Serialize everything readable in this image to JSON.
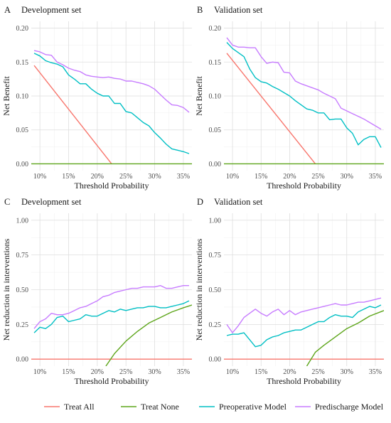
{
  "colors": {
    "treat_all": "#F8766D",
    "treat_none": "#5DA51A",
    "preoperative": "#00BFC4",
    "predischarge": "#C77CFF"
  },
  "legend": {
    "items": [
      {
        "key": "treat_all",
        "label": "Treat All"
      },
      {
        "key": "treat_none",
        "label": "Treat None"
      },
      {
        "key": "preoperative",
        "label": "Preoperative Model"
      },
      {
        "key": "predischarge",
        "label": "Predischarge Model"
      }
    ]
  },
  "chart_data": [
    {
      "letter": "A",
      "type": "line",
      "title": "Development set",
      "xlabel": "Threshold Probability",
      "ylabel": "Net Benefit",
      "xlim": [
        0.085,
        0.365
      ],
      "ylim": [
        -0.01,
        0.21
      ],
      "xticks": [
        0.1,
        0.15,
        0.2,
        0.25,
        0.3,
        0.35
      ],
      "xtick_labels": [
        "10%",
        "15%",
        "20%",
        "25%",
        "30%",
        "35%"
      ],
      "yticks": [
        0.0,
        0.05,
        0.1,
        0.15,
        0.2
      ],
      "ytick_labels": [
        "0.00",
        "0.05",
        "0.10",
        "0.15",
        "0.20"
      ],
      "x": [
        0.09,
        0.1,
        0.11,
        0.12,
        0.13,
        0.14,
        0.15,
        0.16,
        0.17,
        0.18,
        0.19,
        0.2,
        0.21,
        0.22,
        0.23,
        0.24,
        0.25,
        0.26,
        0.27,
        0.28,
        0.29,
        0.3,
        0.31,
        0.32,
        0.33,
        0.34,
        0.35,
        0.36
      ],
      "series": [
        {
          "name": "Treat All",
          "key": "treat_all",
          "x": [
            0.09,
            0.225
          ],
          "values": [
            0.145,
            0.0
          ]
        },
        {
          "name": "Treat None",
          "key": "treat_none",
          "x": [
            0.085,
            0.365
          ],
          "values": [
            0.0,
            0.0
          ]
        },
        {
          "name": "Preoperative Model",
          "key": "preoperative",
          "values": [
            0.163,
            0.159,
            0.152,
            0.149,
            0.147,
            0.143,
            0.131,
            0.125,
            0.118,
            0.118,
            0.11,
            0.104,
            0.1,
            0.1,
            0.089,
            0.089,
            0.077,
            0.075,
            0.068,
            0.061,
            0.056,
            0.046,
            0.038,
            0.029,
            0.022,
            0.02,
            0.018,
            0.015
          ]
        },
        {
          "name": "Predischarge Model",
          "key": "predischarge",
          "values": [
            0.167,
            0.165,
            0.161,
            0.16,
            0.15,
            0.146,
            0.141,
            0.138,
            0.136,
            0.131,
            0.129,
            0.128,
            0.127,
            0.128,
            0.126,
            0.125,
            0.122,
            0.122,
            0.12,
            0.118,
            0.115,
            0.11,
            0.102,
            0.094,
            0.087,
            0.086,
            0.083,
            0.076
          ]
        }
      ]
    },
    {
      "letter": "B",
      "type": "line",
      "title": "Validation set",
      "xlabel": "Threshold Probability",
      "ylabel": "Net Benefit",
      "xlim": [
        0.085,
        0.365
      ],
      "ylim": [
        -0.01,
        0.21
      ],
      "xticks": [
        0.1,
        0.15,
        0.2,
        0.25,
        0.3,
        0.35
      ],
      "xtick_labels": [
        "10%",
        "15%",
        "20%",
        "25%",
        "30%",
        "35%"
      ],
      "yticks": [
        0.0,
        0.05,
        0.1,
        0.15,
        0.2
      ],
      "ytick_labels": [
        "0.00",
        "0.05",
        "0.10",
        "0.15",
        "0.20"
      ],
      "x": [
        0.09,
        0.1,
        0.11,
        0.12,
        0.13,
        0.14,
        0.15,
        0.16,
        0.17,
        0.18,
        0.19,
        0.2,
        0.21,
        0.22,
        0.23,
        0.24,
        0.25,
        0.26,
        0.27,
        0.28,
        0.29,
        0.3,
        0.31,
        0.32,
        0.33,
        0.34,
        0.35,
        0.36
      ],
      "series": [
        {
          "name": "Treat All",
          "key": "treat_all",
          "x": [
            0.09,
            0.245
          ],
          "values": [
            0.163,
            0.0
          ]
        },
        {
          "name": "Treat None",
          "key": "treat_none",
          "x": [
            0.085,
            0.365
          ],
          "values": [
            0.0,
            0.0
          ]
        },
        {
          "name": "Preoperative Model",
          "key": "preoperative",
          "values": [
            0.179,
            0.17,
            0.164,
            0.158,
            0.14,
            0.127,
            0.121,
            0.119,
            0.114,
            0.11,
            0.105,
            0.1,
            0.093,
            0.087,
            0.081,
            0.079,
            0.075,
            0.075,
            0.065,
            0.066,
            0.066,
            0.053,
            0.045,
            0.028,
            0.036,
            0.04,
            0.04,
            0.024
          ]
        },
        {
          "name": "Predischarge Model",
          "key": "predischarge",
          "values": [
            0.186,
            0.175,
            0.172,
            0.172,
            0.171,
            0.171,
            0.158,
            0.148,
            0.15,
            0.149,
            0.135,
            0.134,
            0.122,
            0.118,
            0.115,
            0.112,
            0.109,
            0.104,
            0.1,
            0.096,
            0.082,
            0.078,
            0.074,
            0.07,
            0.066,
            0.061,
            0.056,
            0.051
          ]
        }
      ]
    },
    {
      "letter": "C",
      "type": "line",
      "title": "Development set",
      "xlabel": "Threshold Probability",
      "ylabel": "Net reduction in interventions",
      "xlim": [
        0.085,
        0.365
      ],
      "ylim": [
        -0.05,
        1.05
      ],
      "xticks": [
        0.1,
        0.15,
        0.2,
        0.25,
        0.3,
        0.35
      ],
      "xtick_labels": [
        "10%",
        "15%",
        "20%",
        "25%",
        "30%",
        "35%"
      ],
      "yticks": [
        0.0,
        0.25,
        0.5,
        0.75,
        1.0
      ],
      "ytick_labels": [
        "0.00",
        "0.25",
        "0.50",
        "0.75",
        "1.00"
      ],
      "x": [
        0.09,
        0.1,
        0.11,
        0.12,
        0.13,
        0.14,
        0.15,
        0.16,
        0.17,
        0.18,
        0.19,
        0.2,
        0.21,
        0.22,
        0.23,
        0.24,
        0.25,
        0.26,
        0.27,
        0.28,
        0.29,
        0.3,
        0.31,
        0.32,
        0.33,
        0.34,
        0.35,
        0.36
      ],
      "series": [
        {
          "name": "Treat All",
          "key": "treat_all",
          "x": [
            0.085,
            0.365
          ],
          "values": [
            0.0,
            0.0
          ]
        },
        {
          "name": "Treat None",
          "key": "treat_none",
          "x": [
            0.215,
            0.23,
            0.25,
            0.27,
            0.29,
            0.31,
            0.33,
            0.35,
            0.365
          ],
          "values": [
            -0.05,
            0.04,
            0.13,
            0.2,
            0.26,
            0.3,
            0.34,
            0.37,
            0.39
          ]
        },
        {
          "name": "Preoperative Model",
          "key": "preoperative",
          "values": [
            0.19,
            0.23,
            0.22,
            0.25,
            0.3,
            0.31,
            0.27,
            0.28,
            0.29,
            0.32,
            0.31,
            0.31,
            0.33,
            0.35,
            0.34,
            0.36,
            0.35,
            0.36,
            0.37,
            0.37,
            0.38,
            0.38,
            0.37,
            0.37,
            0.38,
            0.39,
            0.4,
            0.42
          ]
        },
        {
          "name": "Predischarge Model",
          "key": "predischarge",
          "values": [
            0.22,
            0.27,
            0.29,
            0.33,
            0.32,
            0.32,
            0.33,
            0.35,
            0.37,
            0.38,
            0.4,
            0.42,
            0.45,
            0.46,
            0.48,
            0.49,
            0.5,
            0.51,
            0.51,
            0.52,
            0.52,
            0.52,
            0.53,
            0.51,
            0.51,
            0.52,
            0.53,
            0.53
          ]
        }
      ]
    },
    {
      "letter": "D",
      "type": "line",
      "title": "Validation set",
      "xlabel": "Threshold Probability",
      "ylabel": "Net reduction in interventions",
      "xlim": [
        0.085,
        0.365
      ],
      "ylim": [
        -0.05,
        1.05
      ],
      "xticks": [
        0.1,
        0.15,
        0.2,
        0.25,
        0.3,
        0.35
      ],
      "xtick_labels": [
        "10%",
        "15%",
        "20%",
        "25%",
        "30%",
        "35%"
      ],
      "yticks": [
        0.0,
        0.25,
        0.5,
        0.75,
        1.0
      ],
      "ytick_labels": [
        "0.00",
        "0.25",
        "0.50",
        "0.75",
        "1.00"
      ],
      "x": [
        0.09,
        0.1,
        0.11,
        0.12,
        0.13,
        0.14,
        0.15,
        0.16,
        0.17,
        0.18,
        0.19,
        0.2,
        0.21,
        0.22,
        0.23,
        0.24,
        0.25,
        0.26,
        0.27,
        0.28,
        0.29,
        0.3,
        0.31,
        0.32,
        0.33,
        0.34,
        0.35,
        0.36
      ],
      "series": [
        {
          "name": "Treat All",
          "key": "treat_all",
          "x": [
            0.085,
            0.365
          ],
          "values": [
            0.0,
            0.0
          ]
        },
        {
          "name": "Treat None",
          "key": "treat_none",
          "x": [
            0.23,
            0.245,
            0.26,
            0.28,
            0.3,
            0.32,
            0.34,
            0.365
          ],
          "values": [
            -0.05,
            0.05,
            0.1,
            0.16,
            0.22,
            0.26,
            0.31,
            0.35
          ]
        },
        {
          "name": "Preoperative Model",
          "key": "preoperative",
          "values": [
            0.17,
            0.18,
            0.18,
            0.19,
            0.14,
            0.09,
            0.1,
            0.14,
            0.16,
            0.17,
            0.19,
            0.2,
            0.21,
            0.21,
            0.23,
            0.25,
            0.27,
            0.27,
            0.3,
            0.32,
            0.31,
            0.31,
            0.3,
            0.34,
            0.36,
            0.38,
            0.37,
            0.39
          ]
        },
        {
          "name": "Predischarge Model",
          "key": "predischarge",
          "values": [
            0.25,
            0.19,
            0.24,
            0.3,
            0.33,
            0.36,
            0.33,
            0.31,
            0.34,
            0.36,
            0.32,
            0.35,
            0.32,
            0.34,
            0.35,
            0.36,
            0.37,
            0.38,
            0.39,
            0.4,
            0.39,
            0.39,
            0.4,
            0.41,
            0.41,
            0.42,
            0.43,
            0.44
          ]
        }
      ]
    }
  ]
}
